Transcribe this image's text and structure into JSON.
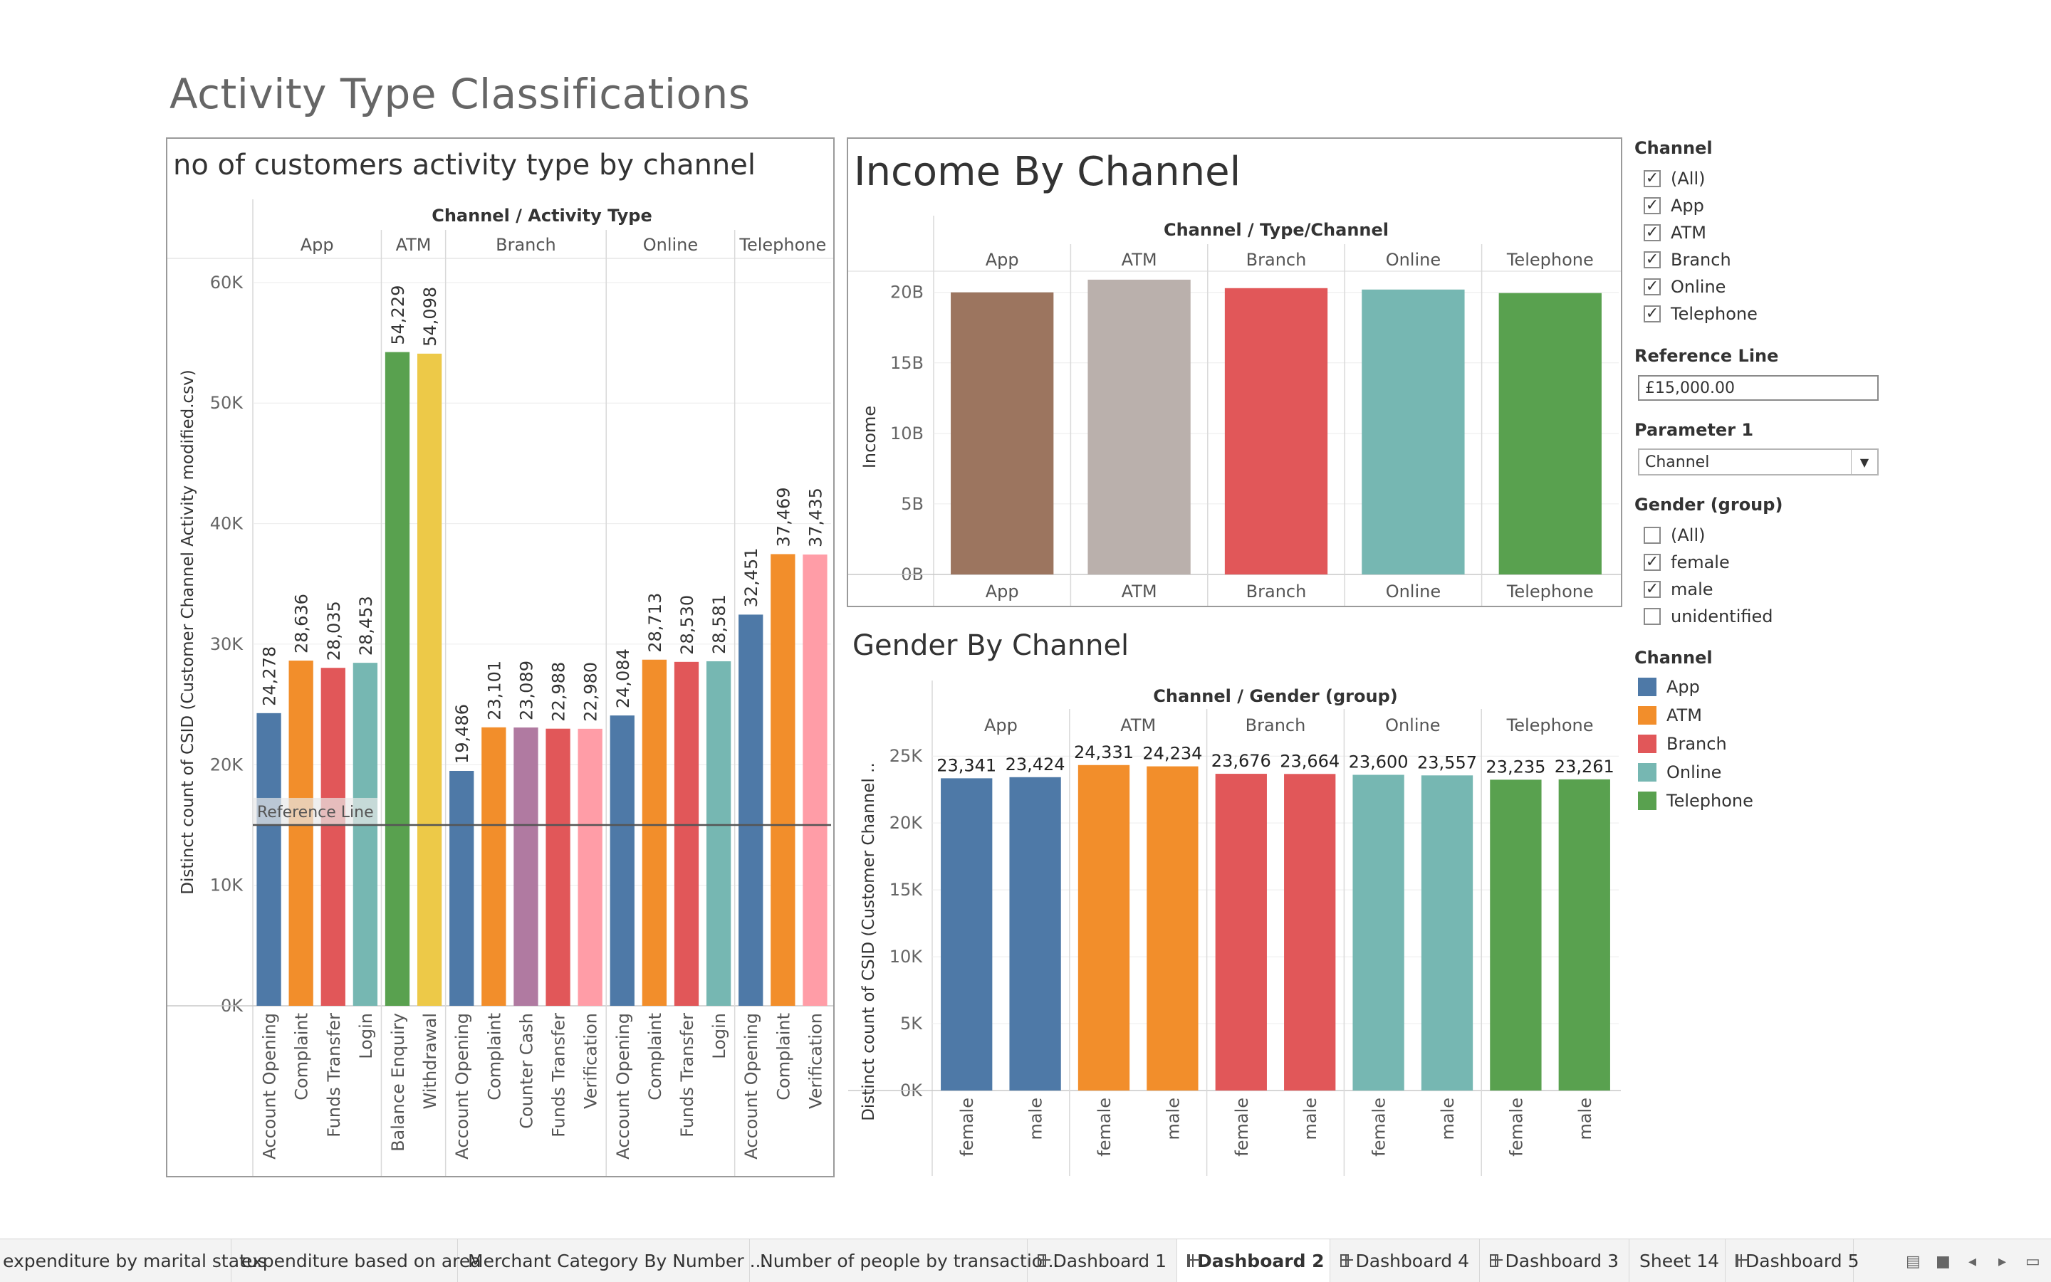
{
  "dashboard": {
    "title": "Activity Type Classifications"
  },
  "chart_data": [
    {
      "id": "activity",
      "type": "bar",
      "title": "no of customers activity type by channel",
      "header_label": "Channel  /  Activity Type",
      "ylabel": "Distinct count of CSID (Customer Channel Activity modified.csv)",
      "ylim": [
        0,
        62000
      ],
      "yticks": [
        0,
        10000,
        20000,
        30000,
        40000,
        50000,
        60000
      ],
      "ytick_labels": [
        "0K",
        "10K",
        "20K",
        "30K",
        "40K",
        "50K",
        "60K"
      ],
      "reference_line": {
        "value": 15000,
        "label": "Reference Line"
      },
      "groups": [
        {
          "name": "App",
          "bars": [
            {
              "label": "Account Opening",
              "value": 24278,
              "value_label": "24,278",
              "color": "#4e79a7"
            },
            {
              "label": "Complaint",
              "value": 28636,
              "value_label": "28,636",
              "color": "#f28e2b"
            },
            {
              "label": "Funds Transfer",
              "value": 28035,
              "value_label": "28,035",
              "color": "#e15759"
            },
            {
              "label": "Login",
              "value": 28453,
              "value_label": "28,453",
              "color": "#76b7b2"
            }
          ]
        },
        {
          "name": "ATM",
          "bars": [
            {
              "label": "Balance Enquiry",
              "value": 54229,
              "value_label": "54,229",
              "color": "#59a14f"
            },
            {
              "label": "Withdrawal",
              "value": 54098,
              "value_label": "54,098",
              "color": "#edc948"
            }
          ]
        },
        {
          "name": "Branch",
          "bars": [
            {
              "label": "Account Opening",
              "value": 19486,
              "value_label": "19,486",
              "color": "#4e79a7"
            },
            {
              "label": "Complaint",
              "value": 23101,
              "value_label": "23,101",
              "color": "#f28e2b"
            },
            {
              "label": "Counter Cash",
              "value": 23089,
              "value_label": "23,089",
              "color": "#b07aa1"
            },
            {
              "label": "Funds Transfer",
              "value": 22988,
              "value_label": "22,988",
              "color": "#e15759"
            },
            {
              "label": "Verification",
              "value": 22980,
              "value_label": "22,980",
              "color": "#ff9da7"
            }
          ]
        },
        {
          "name": "Online",
          "bars": [
            {
              "label": "Account Opening",
              "value": 24084,
              "value_label": "24,084",
              "color": "#4e79a7"
            },
            {
              "label": "Complaint",
              "value": 28713,
              "value_label": "28,713",
              "color": "#f28e2b"
            },
            {
              "label": "Funds Transfer",
              "value": 28530,
              "value_label": "28,530",
              "color": "#e15759"
            },
            {
              "label": "Login",
              "value": 28581,
              "value_label": "28,581",
              "color": "#76b7b2"
            }
          ]
        },
        {
          "name": "Telephone",
          "bars": [
            {
              "label": "Account Opening",
              "value": 32451,
              "value_label": "32,451",
              "color": "#4e79a7"
            },
            {
              "label": "Complaint",
              "value": 37469,
              "value_label": "37,469",
              "color": "#f28e2b"
            },
            {
              "label": "Verification",
              "value": 37435,
              "value_label": "37,435",
              "color": "#ff9da7"
            }
          ]
        }
      ]
    },
    {
      "id": "income",
      "type": "bar",
      "title": "Income By Channel",
      "header_label": "Channel  /  Type/Channel",
      "ylabel": "Income",
      "ylim": [
        0,
        21500000000
      ],
      "yticks": [
        0,
        5000000000,
        10000000000,
        15000000000,
        20000000000
      ],
      "ytick_labels": [
        "0B",
        "5B",
        "10B",
        "15B",
        "20B"
      ],
      "categories": [
        "App",
        "ATM",
        "Branch",
        "Online",
        "Telephone"
      ],
      "values": [
        20000000000,
        20900000000,
        20300000000,
        20200000000,
        19950000000
      ],
      "colors": [
        "#9c755f",
        "#bab0ac",
        "#e15759",
        "#76b7b2",
        "#59a14f"
      ]
    },
    {
      "id": "gender",
      "type": "bar",
      "title": "Gender By Channel",
      "header_label": "Channel  /  Gender (group)",
      "ylabel": "Distinct count of CSID (Customer Channel ..",
      "ylim": [
        0,
        26500
      ],
      "yticks": [
        0,
        5000,
        10000,
        15000,
        20000,
        25000
      ],
      "ytick_labels": [
        "0K",
        "5K",
        "10K",
        "15K",
        "20K",
        "25K"
      ],
      "groups": [
        {
          "name": "App",
          "color": "#4e79a7",
          "bars": [
            {
              "label": "female",
              "value": 23341,
              "value_label": "23,341"
            },
            {
              "label": "male",
              "value": 23424,
              "value_label": "23,424"
            }
          ]
        },
        {
          "name": "ATM",
          "color": "#f28e2b",
          "bars": [
            {
              "label": "female",
              "value": 24331,
              "value_label": "24,331"
            },
            {
              "label": "male",
              "value": 24234,
              "value_label": "24,234"
            }
          ]
        },
        {
          "name": "Branch",
          "color": "#e15759",
          "bars": [
            {
              "label": "female",
              "value": 23676,
              "value_label": "23,676"
            },
            {
              "label": "male",
              "value": 23664,
              "value_label": "23,664"
            }
          ]
        },
        {
          "name": "Online",
          "color": "#76b7b2",
          "bars": [
            {
              "label": "female",
              "value": 23600,
              "value_label": "23,600"
            },
            {
              "label": "male",
              "value": 23557,
              "value_label": "23,557"
            }
          ]
        },
        {
          "name": "Telephone",
          "color": "#59a14f",
          "bars": [
            {
              "label": "female",
              "value": 23235,
              "value_label": "23,235"
            },
            {
              "label": "male",
              "value": 23261,
              "value_label": "23,261"
            }
          ]
        }
      ]
    }
  ],
  "filters": {
    "channel": {
      "title": "Channel",
      "items": [
        {
          "label": "(All)",
          "checked": true
        },
        {
          "label": "App",
          "checked": true
        },
        {
          "label": "ATM",
          "checked": true
        },
        {
          "label": "Branch",
          "checked": true
        },
        {
          "label": "Online",
          "checked": true
        },
        {
          "label": "Telephone",
          "checked": true
        }
      ]
    },
    "reference_line": {
      "title": "Reference Line",
      "value": "£15,000.00"
    },
    "parameter1": {
      "title": "Parameter 1",
      "value": "Channel",
      "arrow": "▼"
    },
    "gender": {
      "title": "Gender (group)",
      "items": [
        {
          "label": "(All)",
          "checked": false
        },
        {
          "label": "female",
          "checked": true
        },
        {
          "label": "male",
          "checked": true
        },
        {
          "label": "unidentified",
          "checked": false
        }
      ]
    },
    "legend": {
      "title": "Channel",
      "items": [
        {
          "label": "App",
          "color": "#4e79a7"
        },
        {
          "label": "ATM",
          "color": "#f28e2b"
        },
        {
          "label": "Branch",
          "color": "#e15759"
        },
        {
          "label": "Online",
          "color": "#76b7b2"
        },
        {
          "label": "Telephone",
          "color": "#59a14f"
        }
      ]
    }
  },
  "tabs": [
    {
      "label": "expenditure by marital status",
      "icon": false,
      "active": false
    },
    {
      "label": "expenditure based on area",
      "icon": false,
      "active": false
    },
    {
      "label": "Merchant Category By Number ...",
      "icon": false,
      "active": false
    },
    {
      "label": "Number of people by transactio...",
      "icon": false,
      "active": false
    },
    {
      "label": "Dashboard 1",
      "icon": true,
      "active": false
    },
    {
      "label": "Dashboard 2",
      "icon": true,
      "active": true
    },
    {
      "label": "Dashboard 4",
      "icon": true,
      "active": false
    },
    {
      "label": "Dashboard 3",
      "icon": true,
      "active": false
    },
    {
      "label": "Sheet 14",
      "icon": false,
      "active": false
    },
    {
      "label": "Dashboard 5",
      "icon": true,
      "active": false
    }
  ]
}
